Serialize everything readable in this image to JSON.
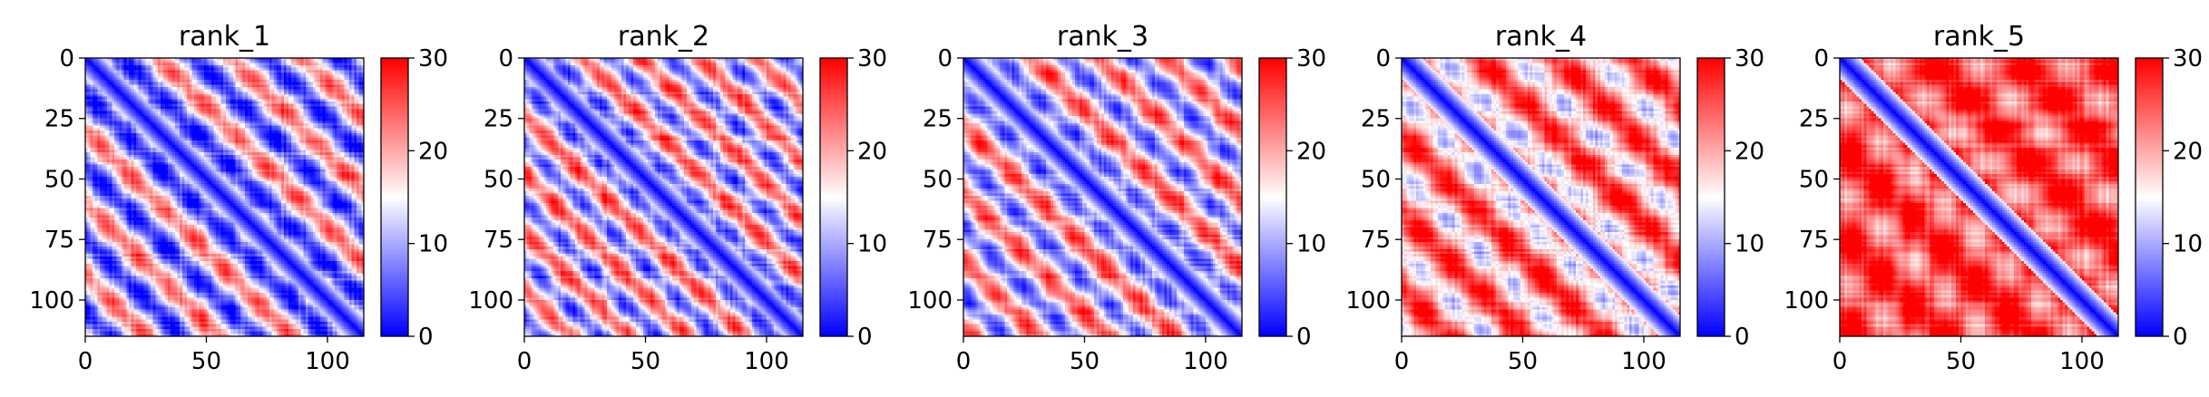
{
  "figure": {
    "background": "#ffffff",
    "colormap": {
      "name": "bwr",
      "low": "#0000ff",
      "mid": "#ffffff",
      "high": "#ff0000"
    }
  },
  "chart_data": [
    {
      "type": "heatmap",
      "title": "rank_1",
      "matrix_size": 115,
      "xticks": [
        0,
        50,
        100
      ],
      "yticks": [
        0,
        25,
        50,
        75,
        100
      ],
      "x_range": [
        0,
        115
      ],
      "y_range": [
        0,
        115
      ],
      "colorbar": {
        "ticks": [
          0,
          10,
          20,
          30
        ],
        "range": [
          0,
          30
        ]
      },
      "distance_min": 0,
      "distance_max": 30
    },
    {
      "type": "heatmap",
      "title": "rank_2",
      "matrix_size": 115,
      "xticks": [
        0,
        50,
        100
      ],
      "yticks": [
        0,
        25,
        50,
        75,
        100
      ],
      "x_range": [
        0,
        115
      ],
      "y_range": [
        0,
        115
      ],
      "colorbar": {
        "ticks": [
          0,
          10,
          20,
          30
        ],
        "range": [
          0,
          30
        ]
      },
      "distance_min": 0,
      "distance_max": 30
    },
    {
      "type": "heatmap",
      "title": "rank_3",
      "matrix_size": 115,
      "xticks": [
        0,
        50,
        100
      ],
      "yticks": [
        0,
        25,
        50,
        75,
        100
      ],
      "x_range": [
        0,
        115
      ],
      "y_range": [
        0,
        115
      ],
      "colorbar": {
        "ticks": [
          0,
          10,
          20,
          30
        ],
        "range": [
          0,
          30
        ]
      },
      "distance_min": 0,
      "distance_max": 30
    },
    {
      "type": "heatmap",
      "title": "rank_4",
      "matrix_size": 115,
      "xticks": [
        0,
        50,
        100
      ],
      "yticks": [
        0,
        25,
        50,
        75,
        100
      ],
      "x_range": [
        0,
        115
      ],
      "y_range": [
        0,
        115
      ],
      "colorbar": {
        "ticks": [
          0,
          10,
          20,
          30
        ],
        "range": [
          0,
          30
        ]
      },
      "distance_min": 0,
      "distance_max": 30
    },
    {
      "type": "heatmap",
      "title": "rank_5",
      "matrix_size": 115,
      "xticks": [
        0,
        50,
        100
      ],
      "yticks": [
        0,
        25,
        50,
        75,
        100
      ],
      "x_range": [
        0,
        115
      ],
      "y_range": [
        0,
        115
      ],
      "colorbar": {
        "ticks": [
          0,
          10,
          20,
          30
        ],
        "range": [
          0,
          30
        ]
      },
      "distance_min": 0,
      "distance_max": 30
    }
  ]
}
